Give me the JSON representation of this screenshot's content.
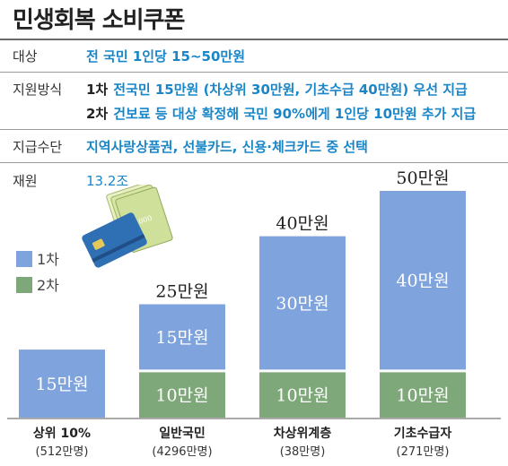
{
  "title": "민생회복 소비쿠폰",
  "info": {
    "target": {
      "label": "대상",
      "value": "전 국민 1인당 15~50만원"
    },
    "method": {
      "label": "지원방식",
      "lines": [
        {
          "prefix": "1차",
          "text": "전국민 15만원 (차상위 30만원, 기초수급 40만원) 우선 지급"
        },
        {
          "prefix": "2차",
          "text": "건보료 등 대상 확정해 국민 90%에게 1인당 10만원 추가 지급"
        }
      ]
    },
    "means": {
      "label": "지급수단",
      "value": "지역사랑상품권, 선불카드, 신용·체크카드 중 선택"
    },
    "budget": {
      "label": "재원",
      "value": "13.2조"
    }
  },
  "illustration": {
    "banknote_text": "50,000"
  },
  "chart_data": {
    "type": "bar",
    "stacked": true,
    "categories": [
      "상위 10%",
      "일반국민",
      "차상위계층",
      "기초수급자"
    ],
    "category_sublabels": [
      "(512만명)",
      "(4296만명)",
      "(38만명)",
      "(271만명)"
    ],
    "series": [
      {
        "name": "1차",
        "values": [
          15,
          15,
          30,
          40
        ],
        "labels": [
          "15만원",
          "15만원",
          "30만원",
          "40만원"
        ],
        "color": "#7fa3dc"
      },
      {
        "name": "2차",
        "values": [
          0,
          10,
          10,
          10
        ],
        "labels": [
          "",
          "10만원",
          "10만원",
          "10만원"
        ],
        "color": "#7fa87a"
      }
    ],
    "totals": [
      "",
      "25만원",
      "40만원",
      "50만원"
    ],
    "ylim": [
      0,
      50
    ],
    "legend_position": "left",
    "grid": false
  }
}
